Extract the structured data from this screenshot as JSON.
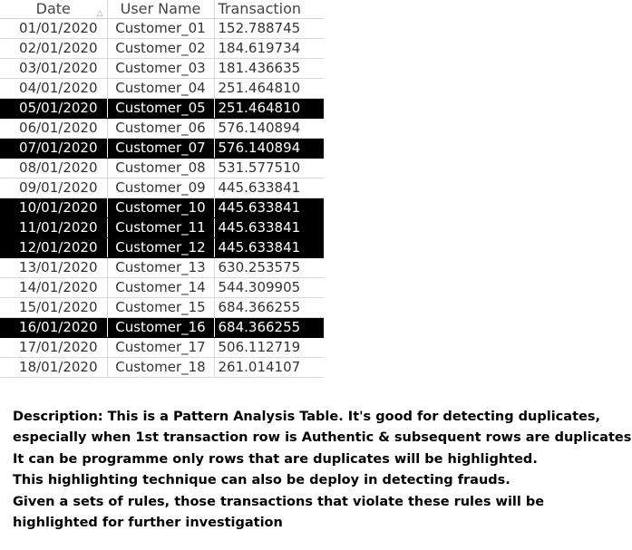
{
  "table": {
    "columns": [
      "Date",
      "User Name",
      "Transaction"
    ],
    "rows": [
      {
        "date": "01/01/2020",
        "user": "Customer_01",
        "transaction": "152.788745",
        "highlighted": false
      },
      {
        "date": "02/01/2020",
        "user": "Customer_02",
        "transaction": "184.619734",
        "highlighted": false
      },
      {
        "date": "03/01/2020",
        "user": "Customer_03",
        "transaction": "181.436635",
        "highlighted": false
      },
      {
        "date": "04/01/2020",
        "user": "Customer_04",
        "transaction": "251.464810",
        "highlighted": false
      },
      {
        "date": "05/01/2020",
        "user": "Customer_05",
        "transaction": "251.464810",
        "highlighted": true
      },
      {
        "date": "06/01/2020",
        "user": "Customer_06",
        "transaction": "576.140894",
        "highlighted": false
      },
      {
        "date": "07/01/2020",
        "user": "Customer_07",
        "transaction": "576.140894",
        "highlighted": true
      },
      {
        "date": "08/01/2020",
        "user": "Customer_08",
        "transaction": "531.577510",
        "highlighted": false
      },
      {
        "date": "09/01/2020",
        "user": "Customer_09",
        "transaction": "445.633841",
        "highlighted": false
      },
      {
        "date": "10/01/2020",
        "user": "Customer_10",
        "transaction": "445.633841",
        "highlighted": true
      },
      {
        "date": "11/01/2020",
        "user": "Customer_11",
        "transaction": "445.633841",
        "highlighted": true
      },
      {
        "date": "12/01/2020",
        "user": "Customer_12",
        "transaction": "445.633841",
        "highlighted": true
      },
      {
        "date": "13/01/2020",
        "user": "Customer_13",
        "transaction": "630.253575",
        "highlighted": false
      },
      {
        "date": "14/01/2020",
        "user": "Customer_14",
        "transaction": "544.309905",
        "highlighted": false
      },
      {
        "date": "15/01/2020",
        "user": "Customer_15",
        "transaction": "684.366255",
        "highlighted": false
      },
      {
        "date": "16/01/2020",
        "user": "Customer_16",
        "transaction": "684.366255",
        "highlighted": true
      },
      {
        "date": "17/01/2020",
        "user": "Customer_17",
        "transaction": "506.112719",
        "highlighted": false
      },
      {
        "date": "18/01/2020",
        "user": "Customer_18",
        "transaction": "261.014107",
        "highlighted": false
      }
    ],
    "sort_icon": "sort-ascending-icon",
    "highlight_color": "#000000",
    "highlight_text_color": "#ffffff"
  },
  "description": {
    "lines": [
      "Description: This is a Pattern Analysis Table. It's good for detecting duplicates,",
      "especially when 1st transaction row is Authentic & subsequent rows are duplicates.",
      "It can be programme only rows that are duplicates will be highlighted.",
      "This highlighting technique can also be deploy in detecting frauds.",
      "Given a sets of rules, those transactions that violate these rules will be",
      "highlighted for further investigation"
    ]
  }
}
